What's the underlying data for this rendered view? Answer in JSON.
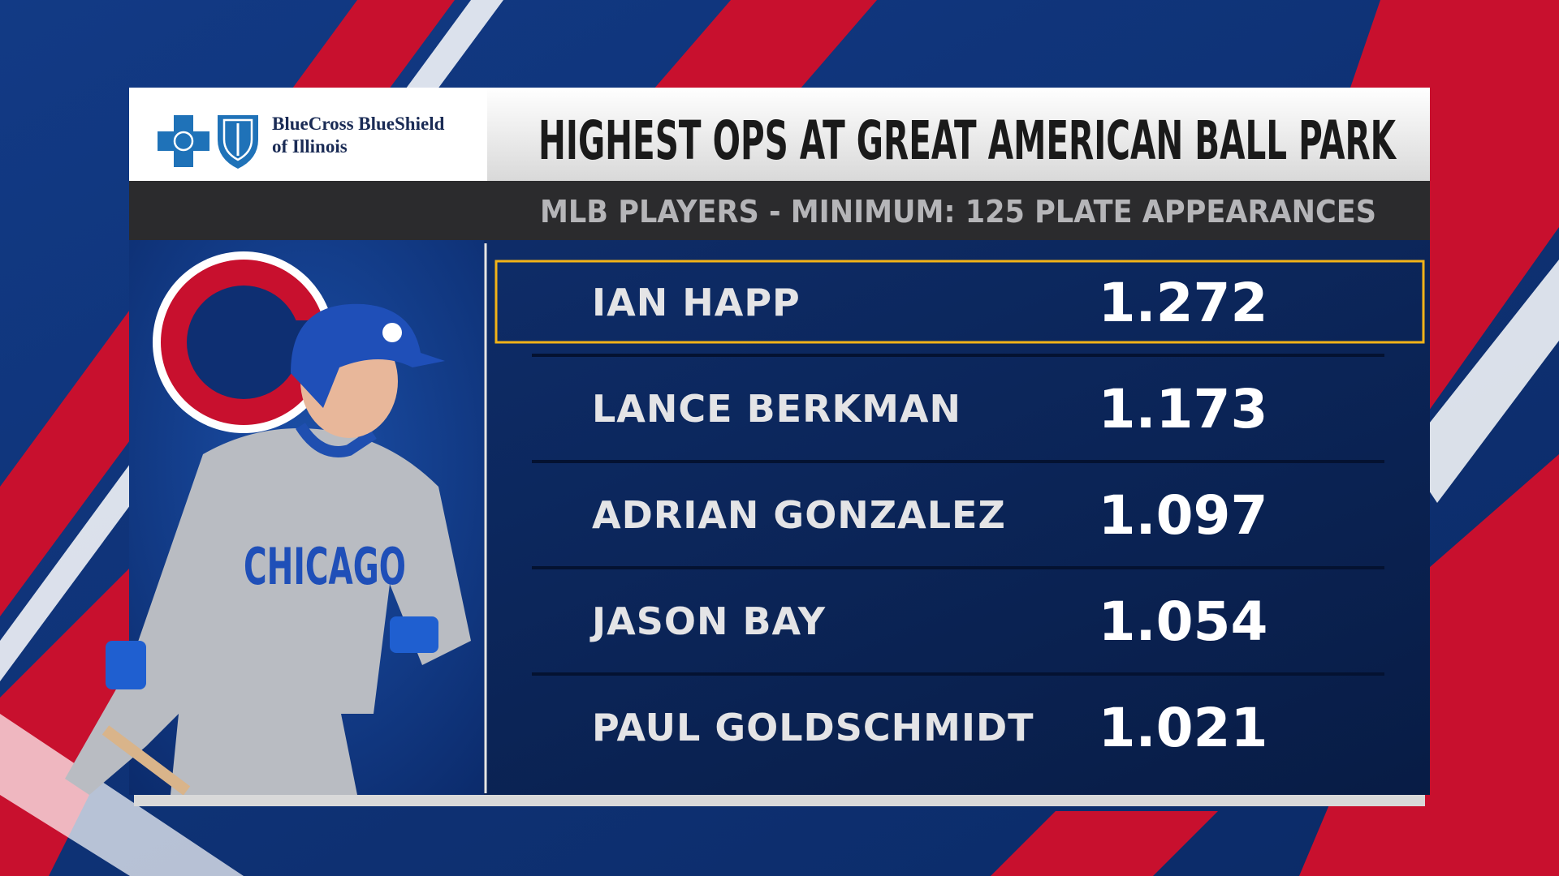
{
  "sponsor": {
    "line1": "BlueCross BlueShield",
    "line2": "of Illinois"
  },
  "title": "HIGHEST OPS AT GREAT AMERICAN BALL PARK",
  "subtitle": "MLB PLAYERS - MINIMUM: 125 PLATE APPEARANCES",
  "rows": [
    {
      "name": "IAN HAPP",
      "value": "1.272"
    },
    {
      "name": "LANCE BERKMAN",
      "value": "1.173"
    },
    {
      "name": "ADRIAN GONZALEZ",
      "value": "1.097"
    },
    {
      "name": "JASON BAY",
      "value": "1.054"
    },
    {
      "name": "PAUL GOLDSCHMIDT",
      "value": "1.021"
    }
  ]
}
